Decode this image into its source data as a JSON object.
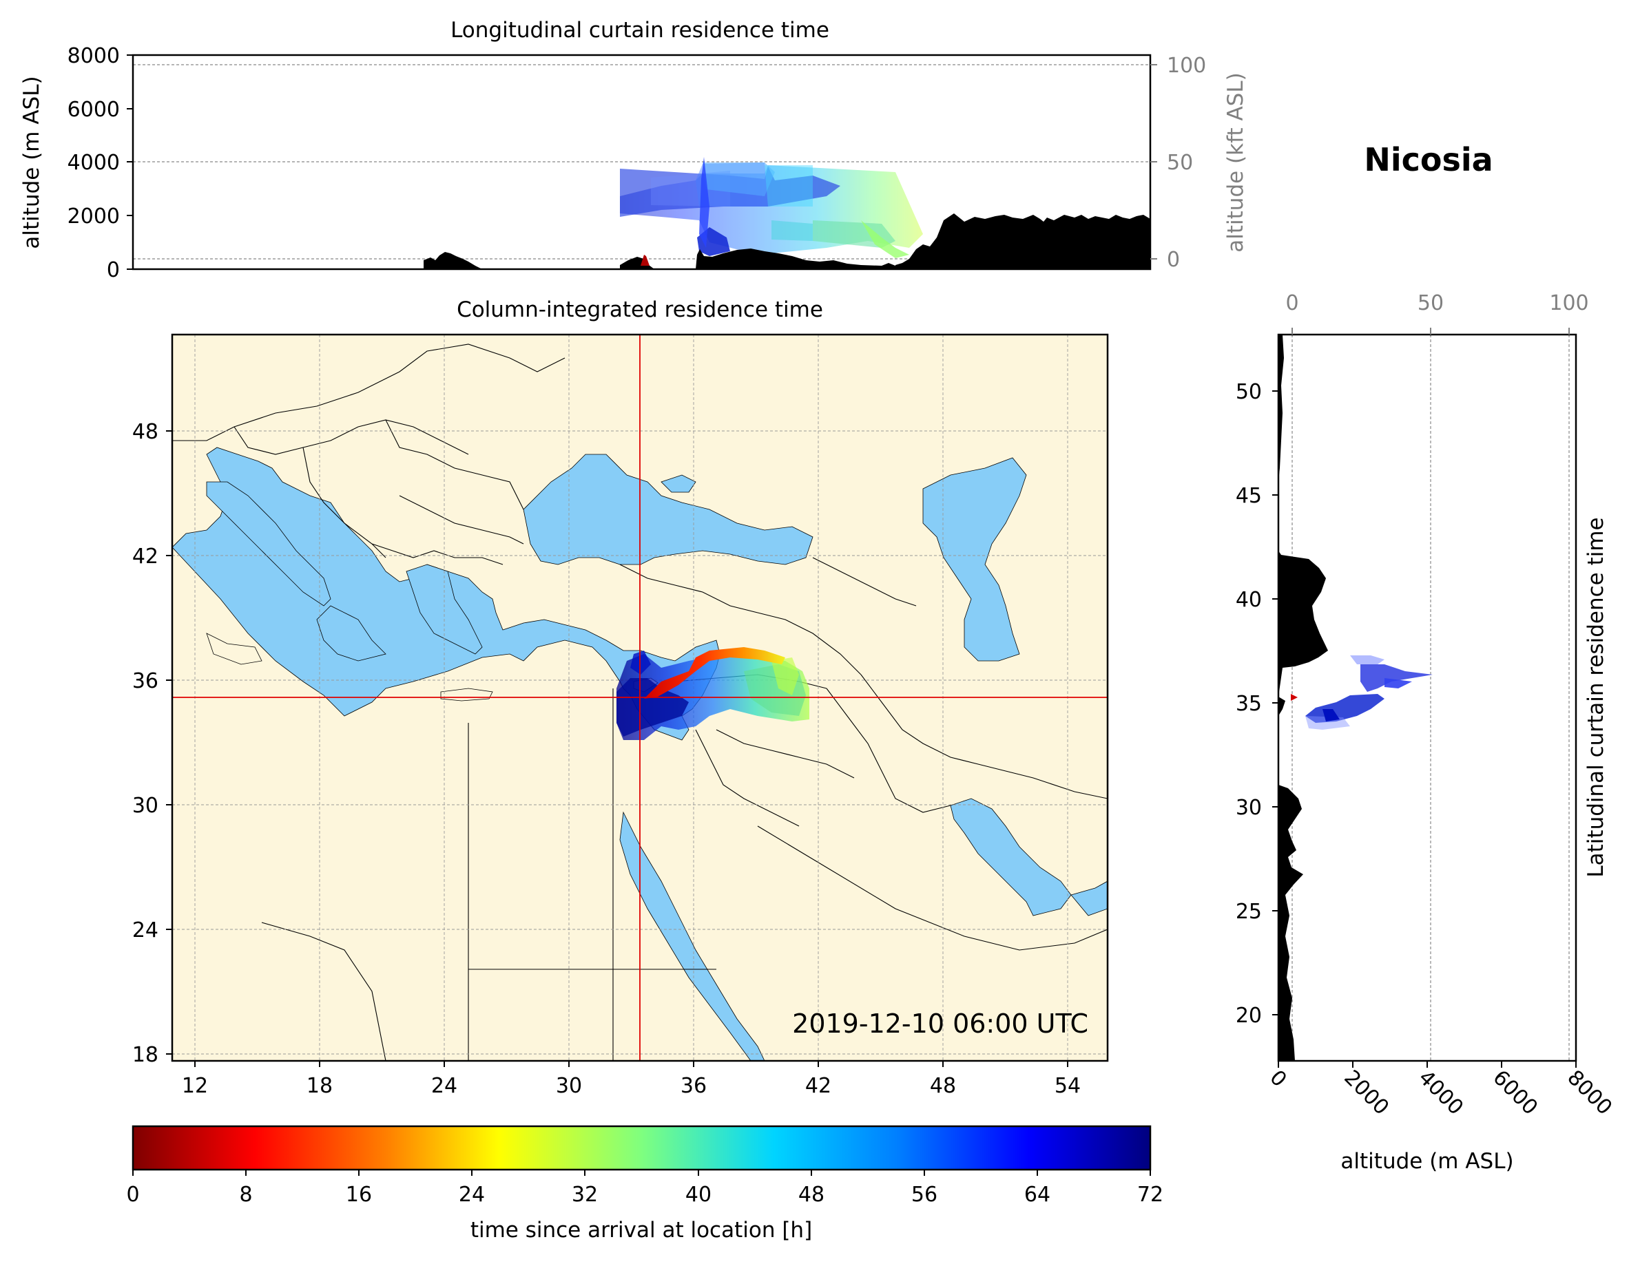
{
  "station": "Nicosia",
  "timestamp": "2019-12-10 06:00 UTC",
  "top_panel": {
    "title": "Longitudinal curtain residence time",
    "ylabel": "altitude (m ASL)",
    "ylabel_right": "altitude (kft ASL)",
    "yticks": [
      "0",
      "2000",
      "4000",
      "6000",
      "8000"
    ],
    "yticks_right": [
      "0",
      "50",
      "100"
    ]
  },
  "map_panel": {
    "title": "Column-integrated residence time",
    "xticks": [
      "12",
      "18",
      "24",
      "30",
      "36",
      "42",
      "48",
      "54"
    ],
    "yticks": [
      "18",
      "24",
      "30",
      "36",
      "42",
      "48"
    ]
  },
  "right_panel": {
    "ylabel_right": "Latitudinal curtain residence time",
    "xlabel": "altitude (m ASL)",
    "xticks": [
      "0",
      "2000",
      "4000",
      "6000",
      "8000"
    ],
    "xticks_top": [
      "0",
      "50",
      "100"
    ],
    "yticks": [
      "20",
      "25",
      "30",
      "35",
      "40",
      "45",
      "50"
    ]
  },
  "colorbar": {
    "label": "time since arrival at location [h]",
    "ticks": [
      "0",
      "8",
      "16",
      "24",
      "32",
      "40",
      "48",
      "56",
      "64",
      "72"
    ],
    "colormap": "jet_reversed"
  },
  "colors": {
    "land": "#fdf6dc",
    "sea": "#87cdf7",
    "crosshair": "#e00000",
    "terrain": "#000000"
  },
  "icons": [
    "crosshair-icon"
  ]
}
